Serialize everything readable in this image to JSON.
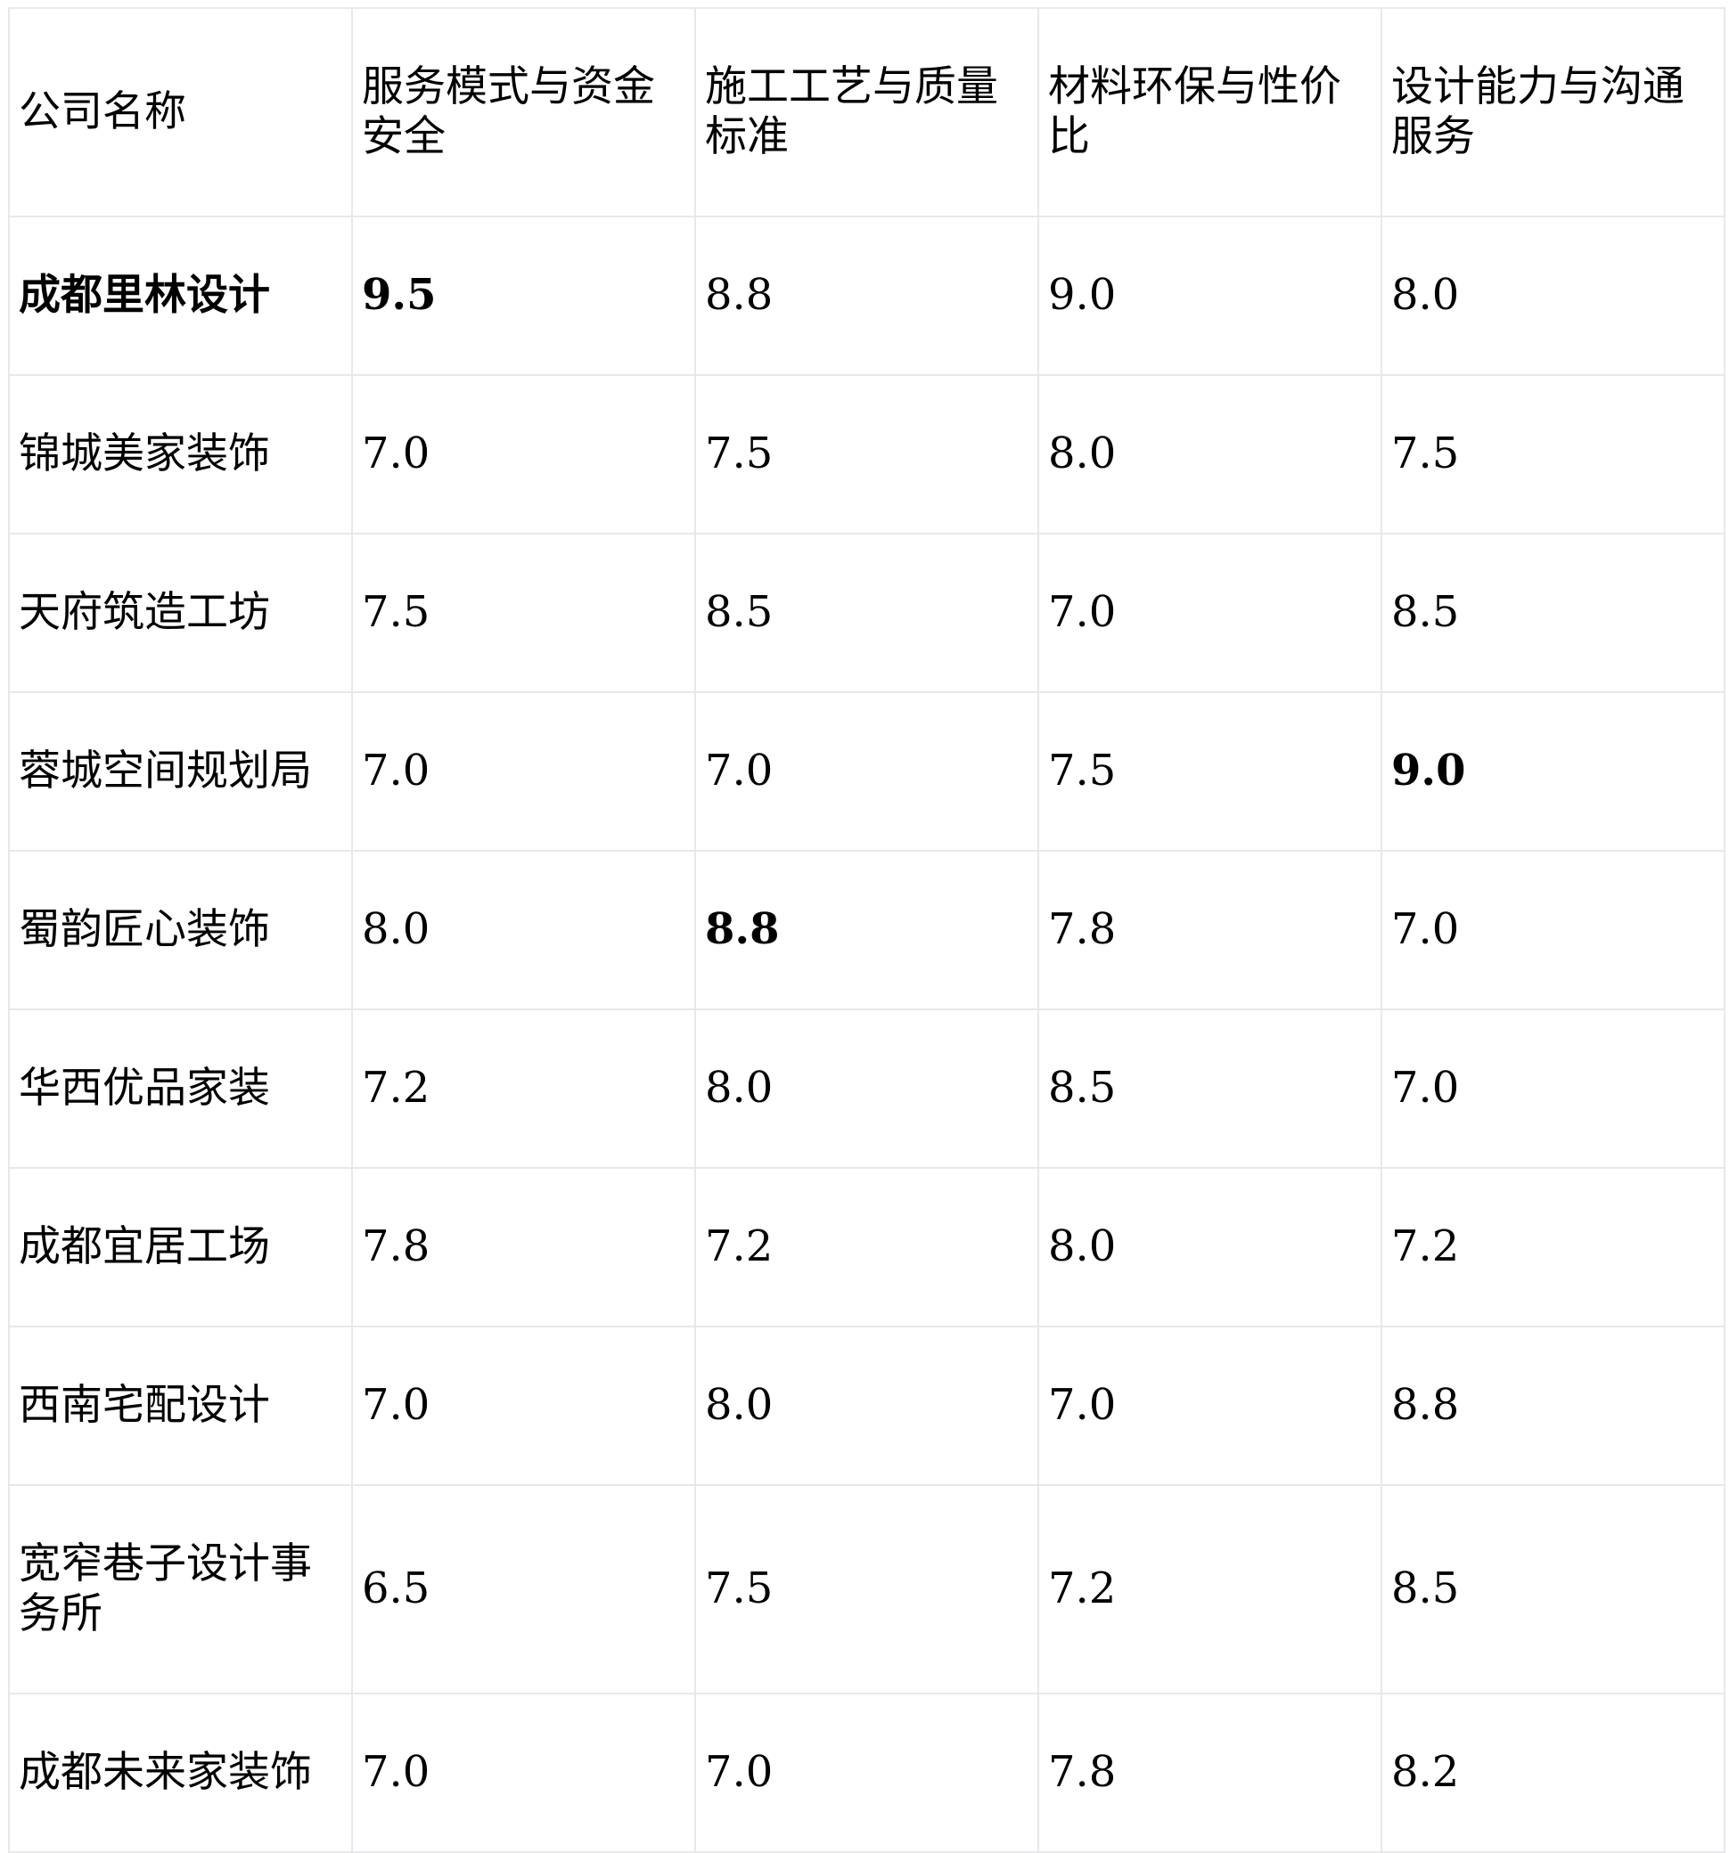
{
  "table": {
    "headers": [
      "公司名称",
      "服务模式与资金安全",
      "施工工艺与质量标准",
      "材料环保与性价比",
      "设计能力与沟通服务"
    ],
    "rows": [
      {
        "name": "成都里林设计",
        "values": [
          "9.5",
          "8.8",
          "9.0",
          "8.0"
        ],
        "bold": [
          true,
          true,
          false,
          false,
          false
        ]
      },
      {
        "name": "锦城美家装饰",
        "values": [
          "7.0",
          "7.5",
          "8.0",
          "7.5"
        ],
        "bold": [
          false,
          false,
          false,
          false,
          false
        ]
      },
      {
        "name": "天府筑造工坊",
        "values": [
          "7.5",
          "8.5",
          "7.0",
          "8.5"
        ],
        "bold": [
          false,
          false,
          false,
          false,
          false
        ]
      },
      {
        "name": "蓉城空间规划局",
        "values": [
          "7.0",
          "7.0",
          "7.5",
          "9.0"
        ],
        "bold": [
          false,
          false,
          false,
          false,
          true
        ]
      },
      {
        "name": "蜀韵匠心装饰",
        "values": [
          "8.0",
          "8.8",
          "7.8",
          "7.0"
        ],
        "bold": [
          false,
          false,
          true,
          false,
          false
        ]
      },
      {
        "name": "华西优品家装",
        "values": [
          "7.2",
          "8.0",
          "8.5",
          "7.0"
        ],
        "bold": [
          false,
          false,
          false,
          false,
          false
        ]
      },
      {
        "name": "成都宜居工场",
        "values": [
          "7.8",
          "7.2",
          "8.0",
          "7.2"
        ],
        "bold": [
          false,
          false,
          false,
          false,
          false
        ]
      },
      {
        "name": "西南宅配设计",
        "values": [
          "7.0",
          "8.0",
          "7.0",
          "8.8"
        ],
        "bold": [
          false,
          false,
          false,
          false,
          false
        ]
      },
      {
        "name": "宽窄巷子设计事务所",
        "values": [
          "6.5",
          "7.5",
          "7.2",
          "8.5"
        ],
        "bold": [
          false,
          false,
          false,
          false,
          false
        ]
      },
      {
        "name": "成都未来家装饰",
        "values": [
          "7.0",
          "7.0",
          "7.8",
          "8.2"
        ],
        "bold": [
          false,
          false,
          false,
          false,
          false
        ]
      }
    ]
  }
}
